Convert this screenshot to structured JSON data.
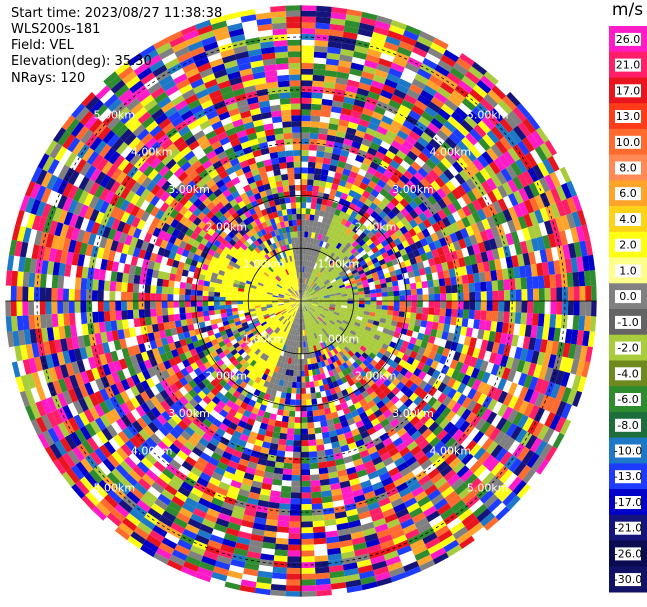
{
  "header": {
    "start_time": "Start time: 2023/08/27 11:38:38",
    "instrument": "WLS200s-181",
    "field": "Field: VEL",
    "elevation": "Elevation(deg): 35.30",
    "nrays": "NRays: 120"
  },
  "chart_data": {
    "type": "heatmap",
    "projection": "polar-ppi",
    "field": "VEL",
    "units": "m/s",
    "nrays": 120,
    "elevation_deg": 35.3,
    "range_ring_labels": [
      "1.00km",
      "2.00km",
      "3.00km",
      "4.00km",
      "5.00km"
    ],
    "range_ring_km": [
      1,
      2,
      3,
      4,
      5
    ],
    "max_range_km": 5.6,
    "colorbar": {
      "unit_label": "m/s",
      "tick_labels": [
        "26.0",
        "21.0",
        "17.0",
        "13.0",
        "10.0",
        "8.0",
        "6.0",
        "4.0",
        "2.0",
        "1.0",
        "0.0",
        "-1.0",
        "-2.0",
        "-4.0",
        "-6.0",
        "-8.0",
        "-10.0",
        "-13.0",
        "-17.0",
        "-21.0",
        "-26.0",
        "-30.0"
      ],
      "colors": [
        "#ff1cc8",
        "#ff1f68",
        "#e8141e",
        "#ff3b1a",
        "#ff6a2e",
        "#ff8a55",
        "#ffa42a",
        "#ffd21a",
        "#ffff14",
        "#ffff8c",
        "#808080",
        "#646464",
        "#a8cc3c",
        "#6e8a1e",
        "#2e8c2e",
        "#1e6e3c",
        "#1e78c8",
        "#1e3cff",
        "#0000c8",
        "#14147a",
        "#0a0a50",
        "#111166"
      ]
    },
    "near_field": {
      "approach_sector_deg": [
        200,
        350
      ],
      "approach_value": 2.0,
      "recede_sector_deg": [
        20,
        170
      ],
      "recede_value": -2.0,
      "transition_sectors_value": 0.0,
      "extent_km": 1.7
    }
  }
}
